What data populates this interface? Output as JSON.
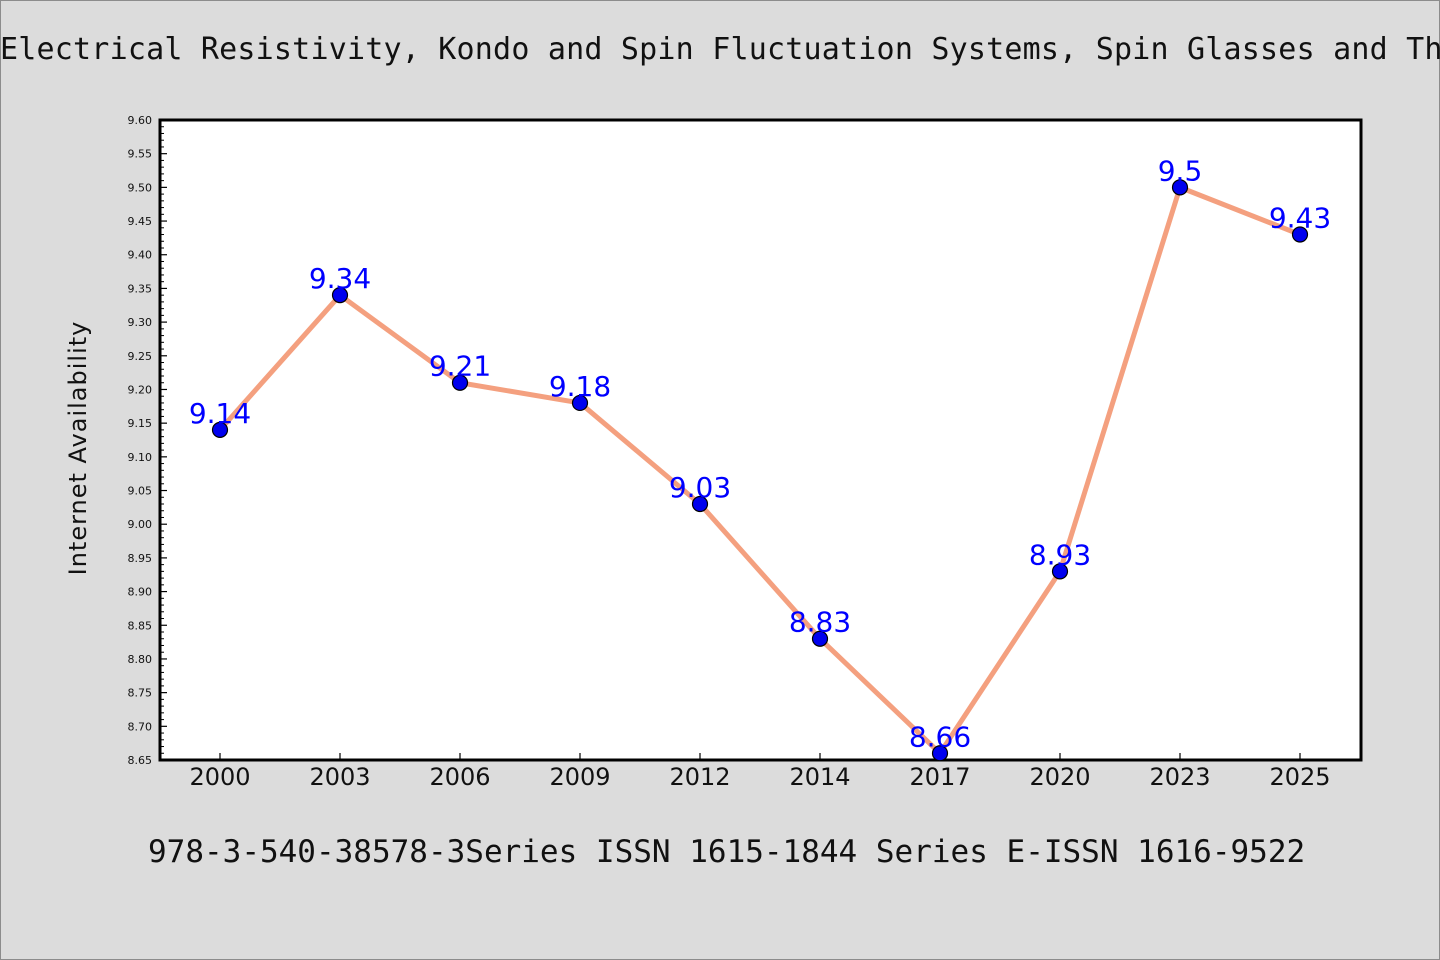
{
  "title": "Electrical Resistivity, Kondo and Spin Fluctuation Systems, Spin Glasses and The",
  "footer": "978-3-540-38578-3Series ISSN 1615-1844 Series E-ISSN 1616-9522",
  "colors": {
    "background": "#dcdcdc",
    "plot_background": "#ffffff",
    "line": "#f4a07f",
    "marker": "#0000ee",
    "data_label": "#0000ff"
  },
  "chart_data": {
    "type": "line",
    "title": "Electrical Resistivity, Kondo and Spin Fluctuation Systems, Spin Glasses and The",
    "xlabel": "",
    "ylabel": "Internet Availability",
    "categories": [
      "2000",
      "2003",
      "2006",
      "2009",
      "2012",
      "2014",
      "2017",
      "2020",
      "2023",
      "2025"
    ],
    "series": [
      {
        "values": [
          9.14,
          9.34,
          9.21,
          9.18,
          9.03,
          8.83,
          8.66,
          8.93,
          9.5,
          9.43
        ]
      }
    ],
    "data_labels": [
      "9.14",
      "9.34",
      "9.21",
      "9.18",
      "9.03",
      "8.83",
      "8.66",
      "8.93",
      "9.5",
      "9.43"
    ],
    "ylim": [
      8.65,
      9.6
    ],
    "yticks": [
      "8.65",
      "8.70",
      "8.75",
      "8.80",
      "8.85",
      "8.90",
      "8.95",
      "9.00",
      "9.05",
      "9.10",
      "9.15",
      "9.20",
      "9.25",
      "9.30",
      "9.35",
      "9.40",
      "9.45",
      "9.50",
      "9.55",
      "9.60"
    ],
    "grid": false,
    "legend": "none"
  }
}
